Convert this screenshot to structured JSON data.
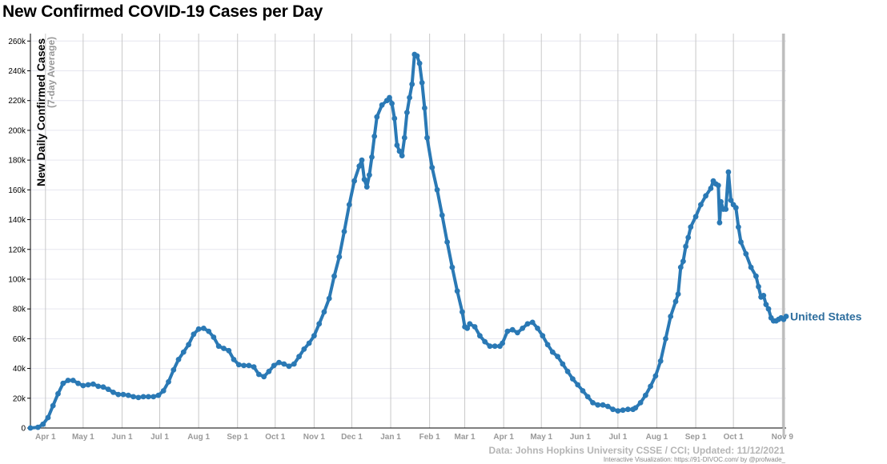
{
  "title": "New Confirmed COVID-19 Cases per Day",
  "source_text": "Data: Johns Hopkins University CSSE / CCI; Updated: 11/12/2021",
  "credit_text": "Interactive Visualization: https://91-DIVOC.com/ by @profwade_",
  "colors": {
    "line": "#2a79b5",
    "label": "#2e6e9e",
    "grid_h": "#e6e6ef",
    "grid_v": "#c8c8c8"
  },
  "chart_data": {
    "type": "line",
    "title": "New Confirmed COVID-19 Cases per Day",
    "ylabel": "New Daily Confirmed Cases",
    "ylabel_sub": "(7-day Average)",
    "xlabel": "",
    "ylim": [
      0,
      265000
    ],
    "yticks": [
      0,
      20000,
      40000,
      60000,
      80000,
      100000,
      120000,
      140000,
      160000,
      180000,
      200000,
      220000,
      240000,
      260000
    ],
    "ytick_labels": [
      "0",
      "20k",
      "40k",
      "60k",
      "80k",
      "100k",
      "120k",
      "140k",
      "160k",
      "180k",
      "200k",
      "220k",
      "240k",
      "260k"
    ],
    "x_unit": "days since Mar 20, 2020",
    "xlim": [
      0,
      602
    ],
    "xticks": [
      {
        "label": "Apr 1",
        "day": 12
      },
      {
        "label": "May 1",
        "day": 42
      },
      {
        "label": "Jun 1",
        "day": 73
      },
      {
        "label": "Jul 1",
        "day": 103
      },
      {
        "label": "Aug 1",
        "day": 134
      },
      {
        "label": "Sep 1",
        "day": 165
      },
      {
        "label": "Oct 1",
        "day": 195
      },
      {
        "label": "Nov 1",
        "day": 226
      },
      {
        "label": "Dec 1",
        "day": 256
      },
      {
        "label": "Jan 1",
        "day": 287
      },
      {
        "label": "Feb 1",
        "day": 318
      },
      {
        "label": "Mar 1",
        "day": 346
      },
      {
        "label": "Apr 1",
        "day": 377
      },
      {
        "label": "May 1",
        "day": 407
      },
      {
        "label": "Jun 1",
        "day": 438
      },
      {
        "label": "Jul 1",
        "day": 468
      },
      {
        "label": "Aug 1",
        "day": 499
      },
      {
        "label": "Sep 1",
        "day": 530
      },
      {
        "label": "Oct 1",
        "day": 560
      },
      {
        "label": "Nov 9",
        "day": 599
      }
    ],
    "series": [
      {
        "name": "United States",
        "points": [
          [
            0,
            0
          ],
          [
            6,
            500
          ],
          [
            10,
            2500
          ],
          [
            14,
            7000
          ],
          [
            18,
            15000
          ],
          [
            22,
            23000
          ],
          [
            26,
            30000
          ],
          [
            30,
            32000
          ],
          [
            34,
            32000
          ],
          [
            38,
            30000
          ],
          [
            42,
            28500
          ],
          [
            46,
            29000
          ],
          [
            50,
            29500
          ],
          [
            54,
            28000
          ],
          [
            58,
            27500
          ],
          [
            62,
            26000
          ],
          [
            66,
            24000
          ],
          [
            70,
            22500
          ],
          [
            74,
            22500
          ],
          [
            78,
            22000
          ],
          [
            82,
            21000
          ],
          [
            86,
            20500
          ],
          [
            90,
            21000
          ],
          [
            94,
            21000
          ],
          [
            98,
            21000
          ],
          [
            102,
            22000
          ],
          [
            106,
            25000
          ],
          [
            110,
            31000
          ],
          [
            114,
            39000
          ],
          [
            118,
            46000
          ],
          [
            122,
            51000
          ],
          [
            126,
            56000
          ],
          [
            130,
            63000
          ],
          [
            134,
            66500
          ],
          [
            138,
            67000
          ],
          [
            142,
            65000
          ],
          [
            146,
            61000
          ],
          [
            150,
            55000
          ],
          [
            154,
            53500
          ],
          [
            158,
            52000
          ],
          [
            162,
            46000
          ],
          [
            166,
            42500
          ],
          [
            170,
            42000
          ],
          [
            174,
            42000
          ],
          [
            178,
            41000
          ],
          [
            182,
            36000
          ],
          [
            186,
            34500
          ],
          [
            190,
            38000
          ],
          [
            194,
            42000
          ],
          [
            198,
            44000
          ],
          [
            202,
            43000
          ],
          [
            206,
            41500
          ],
          [
            210,
            43000
          ],
          [
            214,
            48000
          ],
          [
            218,
            53000
          ],
          [
            222,
            57000
          ],
          [
            226,
            62000
          ],
          [
            230,
            70000
          ],
          [
            234,
            78000
          ],
          [
            238,
            87000
          ],
          [
            242,
            102000
          ],
          [
            246,
            115000
          ],
          [
            250,
            132000
          ],
          [
            254,
            150000
          ],
          [
            258,
            166000
          ],
          [
            262,
            176000
          ],
          [
            264,
            180000
          ],
          [
            266,
            167000
          ],
          [
            268,
            162000
          ],
          [
            270,
            170000
          ],
          [
            272,
            182000
          ],
          [
            274,
            196000
          ],
          [
            276,
            209000
          ],
          [
            280,
            217000
          ],
          [
            284,
            220000
          ],
          [
            286,
            222000
          ],
          [
            288,
            218000
          ],
          [
            290,
            208000
          ],
          [
            292,
            190000
          ],
          [
            294,
            186000
          ],
          [
            296,
            183000
          ],
          [
            298,
            195000
          ],
          [
            300,
            212000
          ],
          [
            302,
            222000
          ],
          [
            304,
            231000
          ],
          [
            306,
            251000
          ],
          [
            308,
            250000
          ],
          [
            310,
            245000
          ],
          [
            312,
            232000
          ],
          [
            314,
            215000
          ],
          [
            316,
            195000
          ],
          [
            320,
            175000
          ],
          [
            324,
            160000
          ],
          [
            328,
            143000
          ],
          [
            332,
            125000
          ],
          [
            336,
            108000
          ],
          [
            340,
            92000
          ],
          [
            344,
            78000
          ],
          [
            346,
            68000
          ],
          [
            348,
            67000
          ],
          [
            350,
            70000
          ],
          [
            354,
            68000
          ],
          [
            358,
            62000
          ],
          [
            362,
            58000
          ],
          [
            366,
            55000
          ],
          [
            370,
            55000
          ],
          [
            374,
            55000
          ],
          [
            376,
            57000
          ],
          [
            380,
            65000
          ],
          [
            384,
            66000
          ],
          [
            388,
            64000
          ],
          [
            392,
            67000
          ],
          [
            396,
            70000
          ],
          [
            400,
            71000
          ],
          [
            404,
            67000
          ],
          [
            408,
            62000
          ],
          [
            412,
            56000
          ],
          [
            416,
            51000
          ],
          [
            420,
            48000
          ],
          [
            424,
            43000
          ],
          [
            428,
            38000
          ],
          [
            432,
            33000
          ],
          [
            436,
            29000
          ],
          [
            440,
            25000
          ],
          [
            444,
            21000
          ],
          [
            448,
            17000
          ],
          [
            452,
            15500
          ],
          [
            456,
            15500
          ],
          [
            460,
            14500
          ],
          [
            464,
            12500
          ],
          [
            468,
            11500
          ],
          [
            472,
            12000
          ],
          [
            476,
            12500
          ],
          [
            480,
            12500
          ],
          [
            482,
            13500
          ],
          [
            486,
            17000
          ],
          [
            490,
            22000
          ],
          [
            494,
            28000
          ],
          [
            498,
            35000
          ],
          [
            502,
            45000
          ],
          [
            506,
            60000
          ],
          [
            510,
            75000
          ],
          [
            514,
            85000
          ],
          [
            516,
            90000
          ],
          [
            518,
            108000
          ],
          [
            520,
            112000
          ],
          [
            522,
            122000
          ],
          [
            524,
            128000
          ],
          [
            526,
            135000
          ],
          [
            530,
            142000
          ],
          [
            534,
            150000
          ],
          [
            538,
            156000
          ],
          [
            542,
            161000
          ],
          [
            544,
            166000
          ],
          [
            546,
            164000
          ],
          [
            548,
            163000
          ],
          [
            549,
            138000
          ],
          [
            550,
            152000
          ],
          [
            552,
            147000
          ],
          [
            554,
            147000
          ],
          [
            556,
            172000
          ],
          [
            558,
            153000
          ],
          [
            560,
            150000
          ],
          [
            562,
            148000
          ],
          [
            564,
            135000
          ],
          [
            566,
            125000
          ],
          [
            570,
            117000
          ],
          [
            574,
            108000
          ],
          [
            578,
            102000
          ],
          [
            580,
            95000
          ],
          [
            582,
            88000
          ],
          [
            584,
            89000
          ],
          [
            586,
            83000
          ],
          [
            588,
            80000
          ],
          [
            590,
            74000
          ],
          [
            592,
            72000
          ],
          [
            594,
            72000
          ],
          [
            596,
            73000
          ],
          [
            598,
            74000
          ],
          [
            600,
            73000
          ],
          [
            602,
            75000
          ]
        ]
      }
    ],
    "annotations": []
  }
}
